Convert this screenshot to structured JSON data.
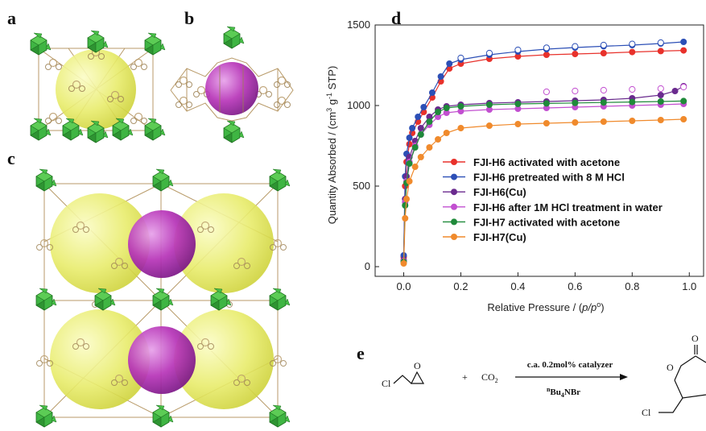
{
  "panels": {
    "a": "a",
    "b": "b",
    "c": "c",
    "d": "d",
    "e": "e"
  },
  "colors": {
    "yellow_sphere": "#e6ea6a",
    "purple_sphere": "#b02bb4",
    "green_cluster": "#38b23a",
    "framework": "#b89a68"
  },
  "chart_data": {
    "type": "line",
    "title": "",
    "xlabel": "Relative Pressure / (p/p°)",
    "xlabel_parts": {
      "prefix": "Relative Pressure / (",
      "var": "p/p",
      "sup": "o",
      "suffix": ")"
    },
    "ylabel": "Quantity Absorbed / (cm³ g⁻¹ STP)",
    "ylabel_parts": {
      "prefix": "Quantity Absorbed / (cm",
      "sup1": "3",
      "mid": " g",
      "sup2": "-1",
      "suffix": " STP)"
    },
    "xlim": [
      -0.1,
      1.05
    ],
    "ylim": [
      -60,
      1500
    ],
    "xticks": [
      0.0,
      0.2,
      0.4,
      0.6,
      0.8,
      1.0
    ],
    "xtick_labels": [
      "0.0",
      "0.2",
      "0.4",
      "0.6",
      "0.8",
      "1.0"
    ],
    "yticks": [
      0,
      500,
      1000,
      1500
    ],
    "ytick_labels": [
      "0",
      "500",
      "1000",
      "1500"
    ],
    "grid": false,
    "legend_position": "center-right",
    "series": [
      {
        "name": "FJI-H6 activated with acetone",
        "color": "#e8312b",
        "x": [
          0.0,
          0.005,
          0.01,
          0.02,
          0.03,
          0.05,
          0.07,
          0.1,
          0.13,
          0.16,
          0.2,
          0.3,
          0.4,
          0.5,
          0.6,
          0.7,
          0.8,
          0.9,
          0.98
        ],
        "y": [
          60,
          500,
          650,
          760,
          830,
          900,
          960,
          1050,
          1150,
          1230,
          1260,
          1290,
          1305,
          1315,
          1320,
          1325,
          1332,
          1338,
          1342
        ]
      },
      {
        "name": "FJI-H6 pretreated with 8 M HCl",
        "color": "#2c4fb6",
        "x": [
          0.0,
          0.005,
          0.01,
          0.02,
          0.03,
          0.05,
          0.07,
          0.1,
          0.13,
          0.16,
          0.2,
          0.3,
          0.4,
          0.5,
          0.6,
          0.7,
          0.8,
          0.9,
          0.98
        ],
        "y": [
          70,
          560,
          700,
          800,
          860,
          930,
          990,
          1080,
          1180,
          1260,
          1285,
          1315,
          1335,
          1350,
          1360,
          1368,
          1375,
          1385,
          1395
        ]
      },
      {
        "name": "FJI-H6(Cu)",
        "color": "#6a2a8e",
        "x": [
          0.0,
          0.005,
          0.01,
          0.02,
          0.04,
          0.06,
          0.09,
          0.12,
          0.15,
          0.2,
          0.3,
          0.4,
          0.5,
          0.6,
          0.7,
          0.8,
          0.9,
          0.95,
          0.98
        ],
        "y": [
          40,
          420,
          560,
          680,
          780,
          860,
          930,
          975,
          995,
          1005,
          1015,
          1020,
          1025,
          1030,
          1035,
          1045,
          1065,
          1090,
          1120
        ]
      },
      {
        "name": "FJI-H6 after 1M HCl treatment in water",
        "color": "#c24fd0",
        "x": [
          0.0,
          0.005,
          0.01,
          0.02,
          0.04,
          0.06,
          0.09,
          0.12,
          0.15,
          0.2,
          0.3,
          0.4,
          0.5,
          0.6,
          0.7,
          0.8,
          0.9,
          0.98
        ],
        "y": [
          35,
          400,
          530,
          650,
          750,
          820,
          880,
          930,
          955,
          965,
          975,
          980,
          985,
          990,
          995,
          1000,
          1005,
          1010
        ]
      },
      {
        "name": "FJI-H7 activated with acetone",
        "color": "#1f8a3a",
        "x": [
          0.0,
          0.005,
          0.01,
          0.02,
          0.04,
          0.06,
          0.09,
          0.12,
          0.15,
          0.2,
          0.3,
          0.4,
          0.5,
          0.6,
          0.7,
          0.8,
          0.9,
          0.98
        ],
        "y": [
          30,
          380,
          520,
          640,
          740,
          820,
          900,
          960,
          985,
          995,
          1005,
          1010,
          1013,
          1016,
          1019,
          1022,
          1025,
          1028
        ]
      },
      {
        "name": "FJI-H7(Cu)",
        "color": "#f08a2c",
        "x": [
          0.0,
          0.005,
          0.01,
          0.02,
          0.04,
          0.06,
          0.09,
          0.12,
          0.15,
          0.2,
          0.3,
          0.4,
          0.5,
          0.6,
          0.7,
          0.8,
          0.9,
          0.98
        ],
        "y": [
          20,
          300,
          420,
          530,
          620,
          680,
          740,
          790,
          830,
          860,
          875,
          885,
          890,
          895,
          900,
          905,
          910,
          915
        ]
      }
    ],
    "hysteresis_open_series": [
      {
        "color": "#c24fd0",
        "x": [
          0.5,
          0.6,
          0.7,
          0.8,
          0.9,
          0.98
        ],
        "y": [
          1085,
          1090,
          1095,
          1100,
          1105,
          1115
        ]
      },
      {
        "color": "#2c4fb6",
        "x": [
          0.2,
          0.3,
          0.4,
          0.5,
          0.6,
          0.7,
          0.8,
          0.9
        ],
        "y": [
          1295,
          1325,
          1345,
          1358,
          1367,
          1375,
          1382,
          1390
        ]
      }
    ]
  },
  "reaction": {
    "reactant_cl": "Cl",
    "reactant_o": "O",
    "plus": "+",
    "co2": "CO",
    "co2_sub": "2",
    "catalyst": "c.a. 0.2mol% catalyzer",
    "cocatalyst_sup": "n",
    "cocatalyst_prefix": "Bu",
    "cocatalyst_sub": "4",
    "cocatalyst_suffix": "NBr",
    "product_o_ring": "O",
    "product_o_carbonyl": "O",
    "product_cl": "Cl"
  }
}
